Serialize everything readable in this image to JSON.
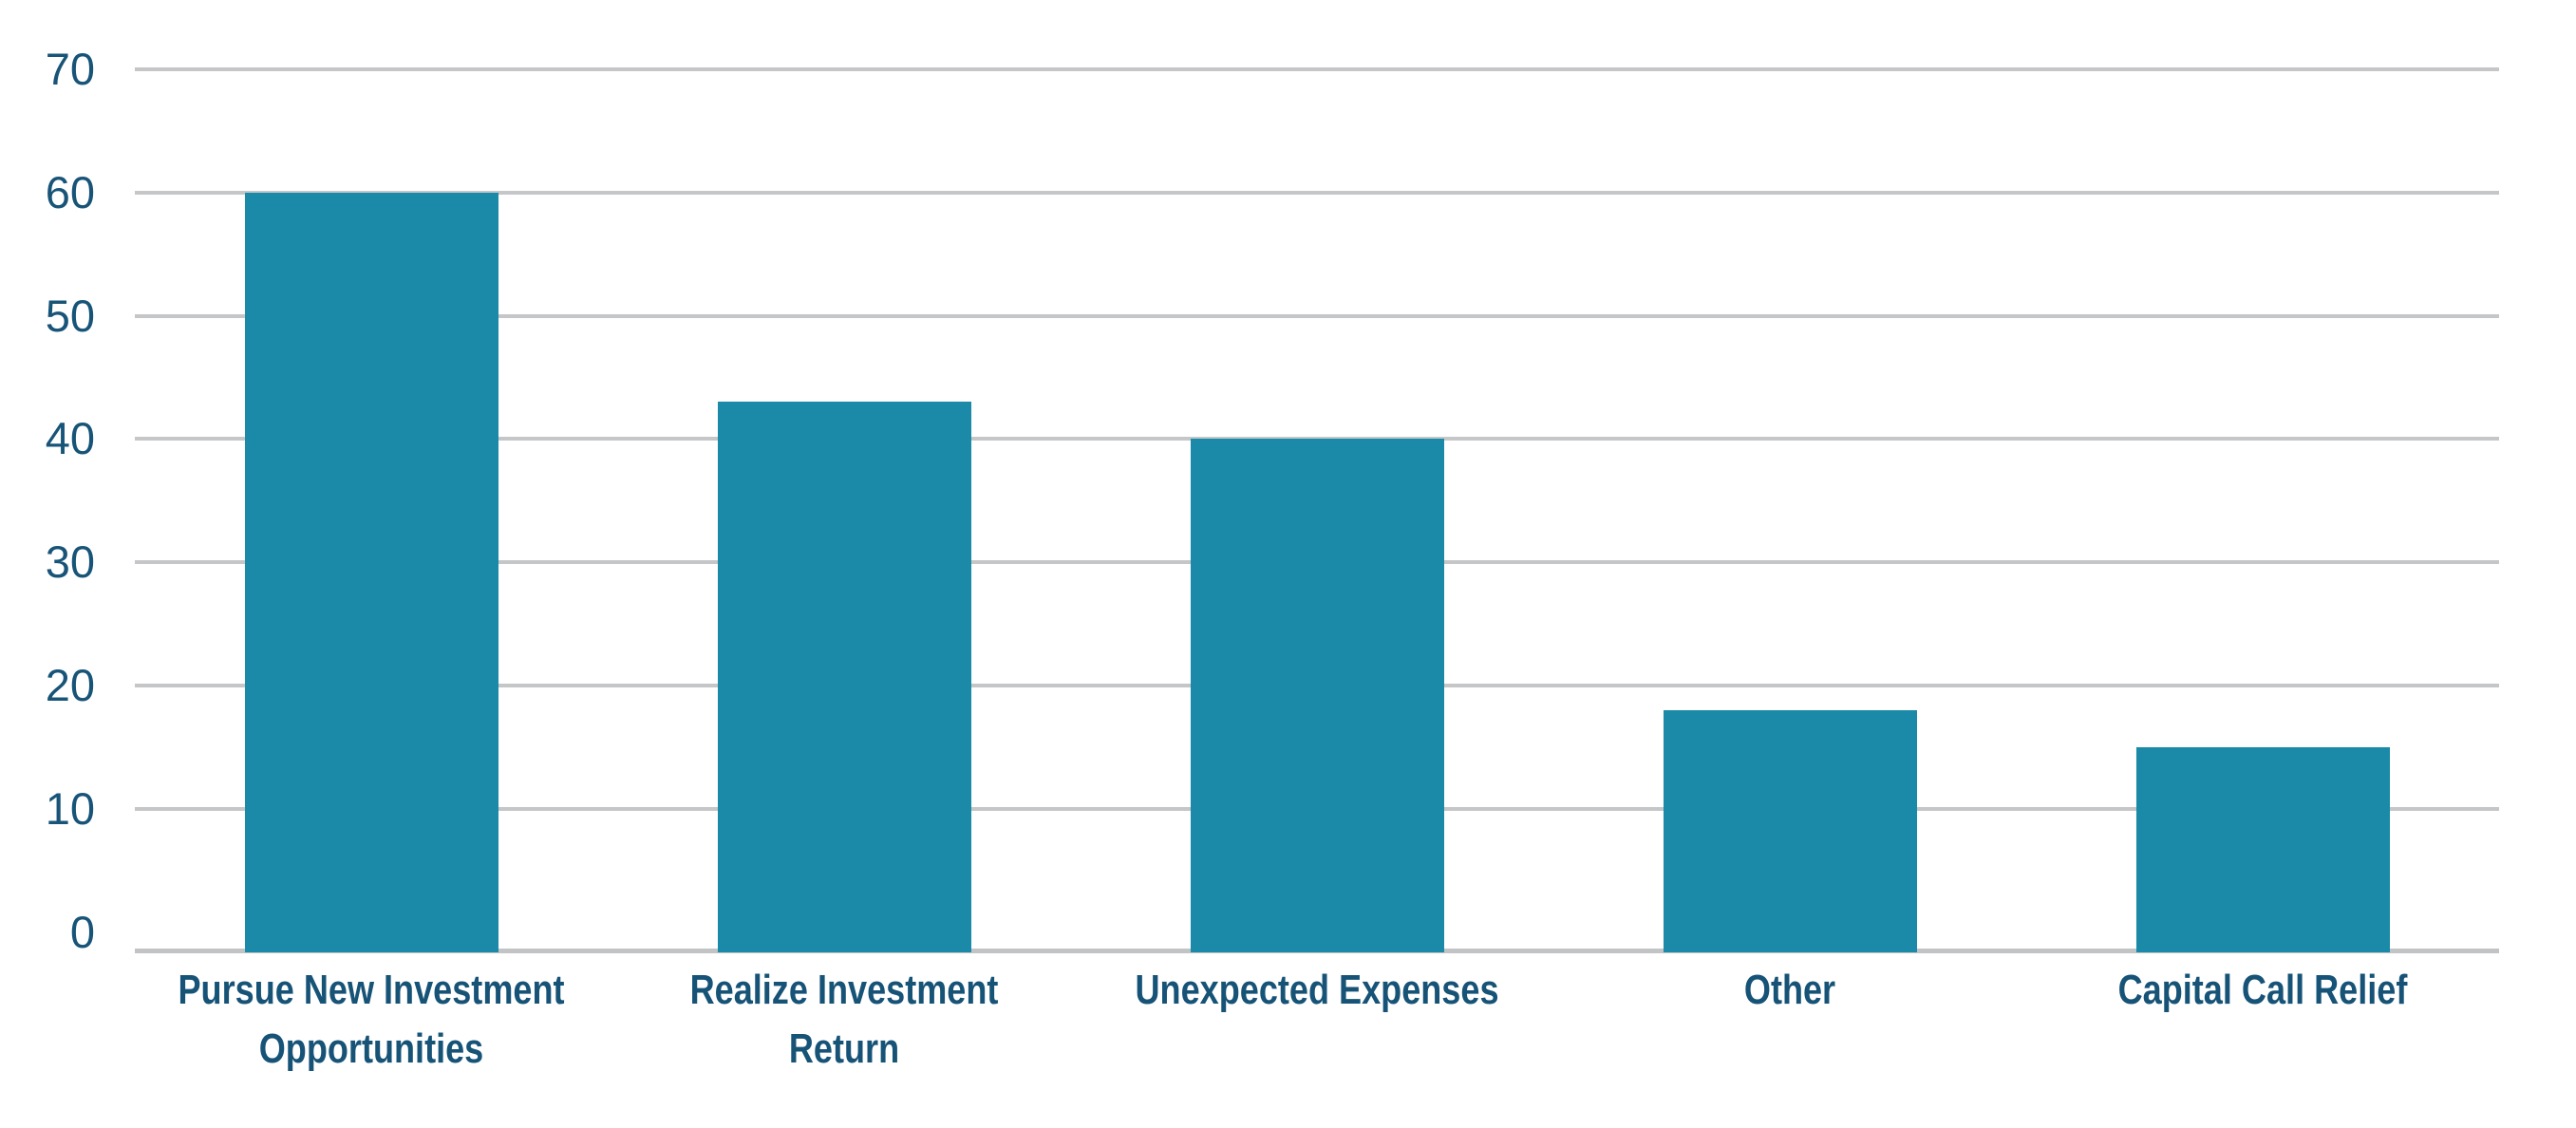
{
  "chart_data": {
    "type": "bar",
    "title": "",
    "xlabel": "",
    "ylabel": "",
    "categories": [
      "Pursue New Investment Opportunities",
      "Realize Investment Return",
      "Unexpected Expenses",
      "Other",
      "Capital Call Relief"
    ],
    "category_label_lines": [
      [
        "Pursue New Investment",
        "Opportunities"
      ],
      [
        "Realize Investment",
        "Return"
      ],
      [
        "Unexpected Expenses"
      ],
      [
        "Other"
      ],
      [
        "Capital Call Relief"
      ]
    ],
    "values": [
      60,
      43,
      40,
      18,
      15
    ],
    "ylim": [
      0,
      70
    ],
    "y_ticks": [
      70,
      60,
      50,
      40,
      30,
      20,
      10,
      0
    ],
    "grid": "horizontal-only",
    "legend": "none",
    "bar_orientation": "vertical",
    "colors": {
      "bar": "#1a8aa8",
      "axis_text": "#175478",
      "category_text": "#165377",
      "gridline": "#c5c6c8",
      "baseline": "#c2c3c5",
      "background": "#ffffff"
    }
  }
}
